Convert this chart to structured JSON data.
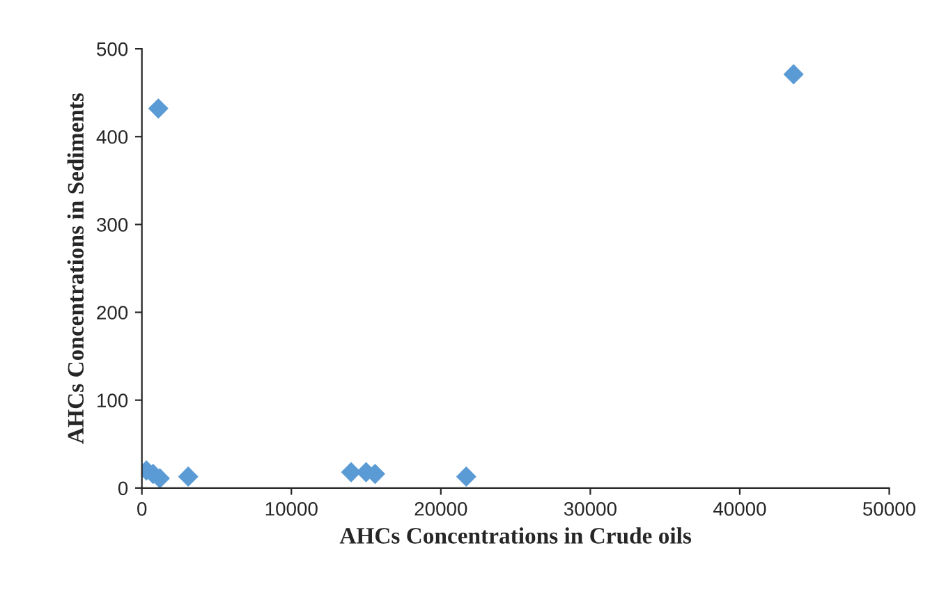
{
  "chart_data": {
    "type": "scatter",
    "xlabel": "AHCs Concentrations in Crude oils",
    "ylabel": "AHCs Concentrations in Sediments",
    "x": [
      300,
      750,
      1100,
      1200,
      3100,
      14000,
      15000,
      15600,
      21700,
      43600
    ],
    "series": [
      {
        "color": "#5b9bd5",
        "values": [
          20,
          16,
          432,
          11,
          13,
          18,
          18,
          16,
          13,
          471
        ]
      }
    ],
    "xlim": [
      0,
      50000
    ],
    "xticks": [
      0,
      10000,
      20000,
      30000,
      40000,
      50000
    ],
    "ylim": [
      0,
      500
    ],
    "yticks": [
      0,
      100,
      200,
      300,
      400,
      500
    ],
    "marker": "diamond",
    "grid": false,
    "legend": false
  }
}
